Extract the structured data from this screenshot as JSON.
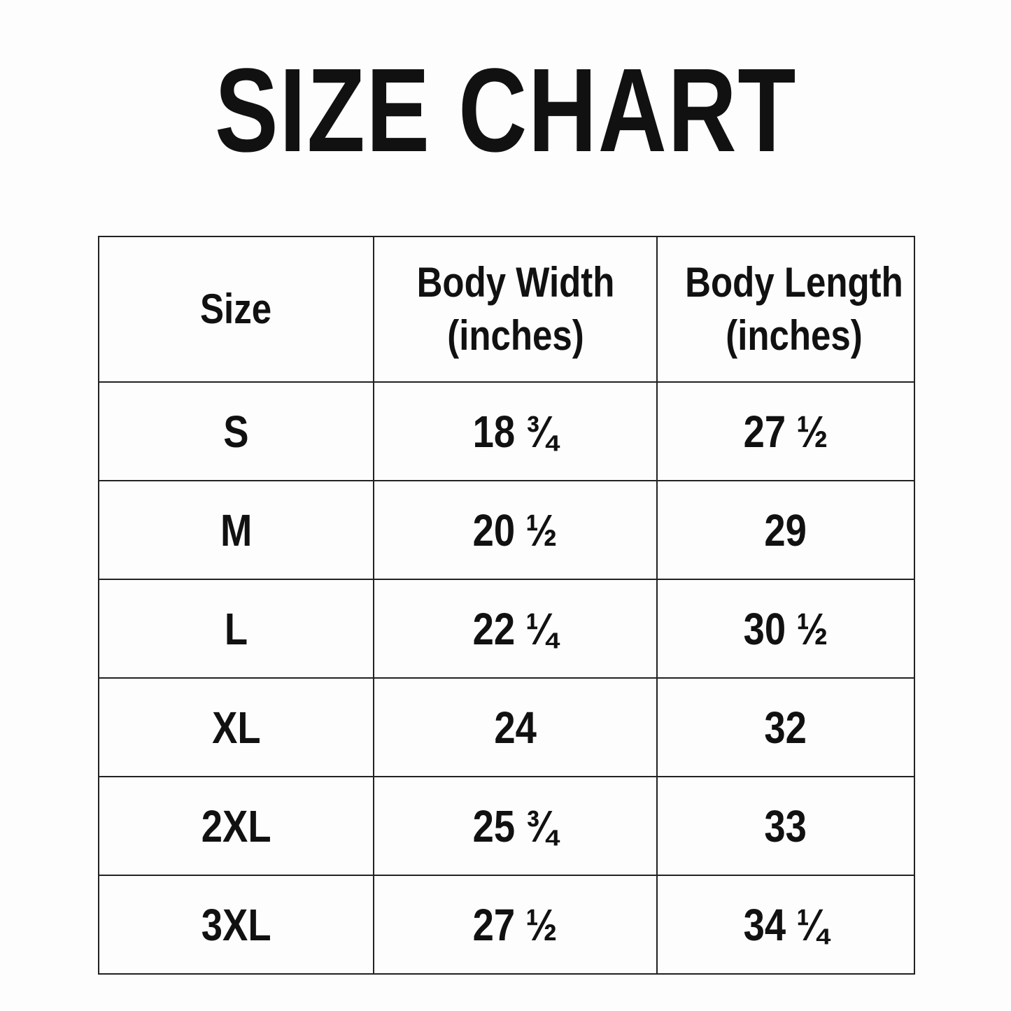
{
  "title": "SIZE CHART",
  "table": {
    "headers": [
      "Size",
      "Body Width (inches)",
      "Body Length (inches)"
    ],
    "rows": [
      [
        "S",
        "18 ¾",
        "27 ½"
      ],
      [
        "M",
        "20 ½",
        "29"
      ],
      [
        "L",
        "22 ¼",
        "30 ½"
      ],
      [
        "XL",
        "24",
        "32"
      ],
      [
        "2XL",
        "25 ¾",
        "33"
      ],
      [
        "3XL",
        "27 ½",
        "34 ¼"
      ]
    ]
  }
}
